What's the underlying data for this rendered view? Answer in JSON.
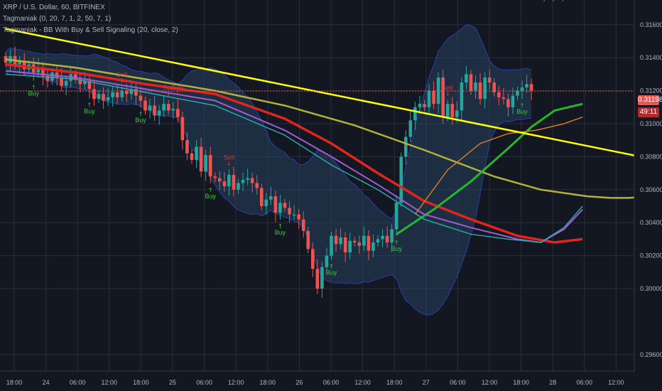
{
  "legend": {
    "symbol": "XRP / U.S. Dollar, 60, BITFINEX",
    "indicator1": "Tagmaniak (0, 20, 7, 1, 2, 50, 7, 1)",
    "indicator2": "Tagmaniak - BB With Buy & Sell Signaling (20, close, 2)"
  },
  "price_axis": {
    "ticks": [
      "0.31600",
      "0.31400",
      "0.31200",
      "0.31000",
      "0.30800",
      "0.30600",
      "0.30400",
      "0.30200",
      "0.30000",
      "0.29600"
    ],
    "last_price": "0.31198",
    "countdown": "49:11"
  },
  "time_axis": {
    "ticks": [
      "18:00",
      "24",
      "06:00",
      "12:00",
      "18:00",
      "25",
      "06:00",
      "12:00",
      "18:00",
      "26",
      "06:00",
      "12:00",
      "18:00",
      "27",
      "06:00",
      "12:00",
      "18:00",
      "28",
      "06:00",
      "12:00"
    ]
  },
  "signals": {
    "buy_label": "Buy",
    "sell_label": "Sell"
  },
  "colors": {
    "background": "#131722",
    "up_candle": "#26a69a",
    "down_candle": "#ef5350",
    "trendline": "#ffff00",
    "band_fill": "#2a4a6a",
    "band_edge": "#2e3fa8",
    "ma_red": "#e0251f",
    "ma_yellow": "#b5b03a",
    "ma_green": "#2bb52b",
    "ma_purple": "#a35bd4",
    "ma_teal": "#2ba8a8",
    "ma_orange": "#d07a2a",
    "buy": "#2bd12b",
    "sell": "#e04040"
  },
  "chart_data": {
    "type": "line",
    "title": "XRP / U.S. Dollar, 60, BITFINEX",
    "ylim": [
      0.295,
      0.3175
    ],
    "last_price": 0.31198,
    "close": [
      0.3137,
      0.3141,
      0.3136,
      0.3138,
      0.3133,
      0.3136,
      0.3131,
      0.3134,
      0.3129,
      0.3126,
      0.3131,
      0.3128,
      0.3123,
      0.3126,
      0.313,
      0.3127,
      0.3124,
      0.3126,
      0.3121,
      0.3115,
      0.3118,
      0.3114,
      0.3116,
      0.3119,
      0.3116,
      0.312,
      0.3118,
      0.3121,
      0.3117,
      0.3114,
      0.3108,
      0.3111,
      0.3105,
      0.3108,
      0.3112,
      0.3108,
      0.3109,
      0.3104,
      0.309,
      0.3082,
      0.3078,
      0.3086,
      0.3071,
      0.3081,
      0.3068,
      0.3067,
      0.3065,
      0.3062,
      0.3069,
      0.306,
      0.3064,
      0.3066,
      0.3067,
      0.3064,
      0.3061,
      0.305,
      0.3054,
      0.3056,
      0.3046,
      0.3052,
      0.3049,
      0.3045,
      0.3045,
      0.3042,
      0.3035,
      0.3024,
      0.3012,
      0.3,
      0.3013,
      0.302,
      0.3032,
      0.3027,
      0.3031,
      0.3022,
      0.3029,
      0.3028,
      0.3026,
      0.3032,
      0.3023,
      0.3028,
      0.303,
      0.3032,
      0.3028,
      0.3036,
      0.3052,
      0.308,
      0.3092,
      0.3102,
      0.311,
      0.3112,
      0.311,
      0.312,
      0.3112,
      0.3128,
      0.3104,
      0.3112,
      0.3104,
      0.3108,
      0.3125,
      0.313,
      0.312,
      0.3125,
      0.3115,
      0.3128,
      0.3125,
      0.3119,
      0.3116,
      0.3115,
      0.311,
      0.3117,
      0.312,
      0.3122,
      0.3124,
      0.312
    ],
    "trendline": [
      [
        0,
        0.31575
      ],
      [
        140,
        0.3078
      ]
    ],
    "series": [
      {
        "values": [
          [
            0,
            0.3139
          ],
          [
            15,
            0.3134
          ],
          [
            30,
            0.3127
          ],
          [
            45,
            0.312
          ],
          [
            60,
            0.3111
          ],
          [
            75,
            0.3099
          ],
          [
            90,
            0.3084
          ],
          [
            105,
            0.3068
          ],
          [
            115,
            0.306
          ],
          [
            125,
            0.3056
          ],
          [
            130,
            0.3055
          ],
          [
            134,
            0.3055
          ],
          [
            138,
            0.3056
          ],
          [
            140,
            0.3057
          ]
        ]
      },
      {
        "values": [
          [
            0,
            0.3136
          ],
          [
            15,
            0.3131
          ],
          [
            30,
            0.3124
          ],
          [
            45,
            0.3118
          ],
          [
            60,
            0.3103
          ],
          [
            70,
            0.3088
          ],
          [
            80,
            0.307
          ],
          [
            90,
            0.3053
          ],
          [
            100,
            0.3042
          ],
          [
            110,
            0.3032
          ],
          [
            118,
            0.3028
          ],
          [
            124,
            0.303
          ]
        ]
      },
      {
        "values": [
          [
            84,
            0.3033
          ],
          [
            92,
            0.3048
          ],
          [
            100,
            0.3065
          ],
          [
            108,
            0.3085
          ],
          [
            113,
            0.3098
          ],
          [
            118,
            0.3108
          ],
          [
            124,
            0.3112
          ]
        ]
      },
      {
        "values": [
          [
            0,
            0.3132
          ],
          [
            15,
            0.3128
          ],
          [
            30,
            0.3121
          ],
          [
            45,
            0.3114
          ],
          [
            60,
            0.3096
          ],
          [
            70,
            0.308
          ],
          [
            80,
            0.3063
          ],
          [
            90,
            0.3045
          ],
          [
            100,
            0.3037
          ],
          [
            110,
            0.303
          ],
          [
            115,
            0.3028
          ],
          [
            120,
            0.3036
          ],
          [
            124,
            0.3048
          ]
        ]
      },
      {
        "values": [
          [
            0,
            0.313
          ],
          [
            15,
            0.3127
          ],
          [
            30,
            0.3119
          ],
          [
            45,
            0.3111
          ],
          [
            60,
            0.3093
          ],
          [
            70,
            0.3075
          ],
          [
            80,
            0.306
          ],
          [
            90,
            0.3042
          ],
          [
            100,
            0.3033
          ],
          [
            108,
            0.303
          ],
          [
            115,
            0.3028
          ],
          [
            120,
            0.3037
          ],
          [
            124,
            0.305
          ]
        ]
      },
      {
        "values": [
          [
            88,
            0.3045
          ],
          [
            95,
            0.3072
          ],
          [
            102,
            0.3088
          ],
          [
            108,
            0.3094
          ],
          [
            114,
            0.3096
          ],
          [
            120,
            0.31
          ],
          [
            124,
            0.3104
          ]
        ]
      }
    ]
  }
}
